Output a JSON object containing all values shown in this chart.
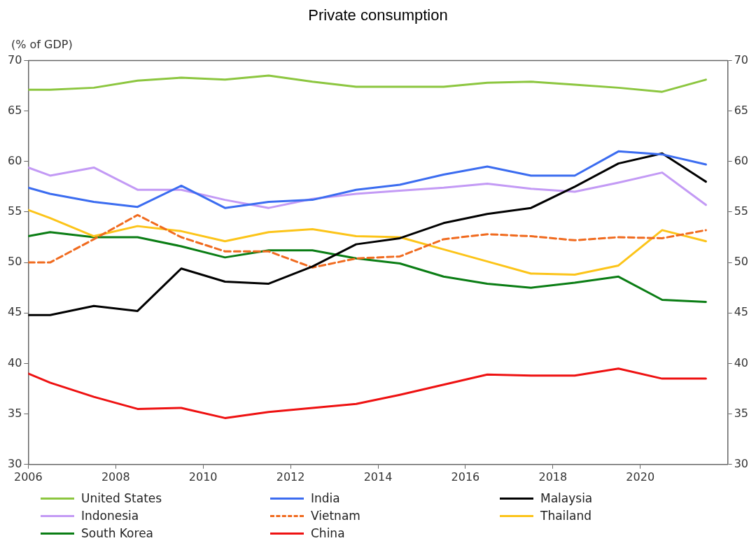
{
  "chart_data": {
    "type": "line",
    "title": "Private consumption",
    "ylabel": "(% of GDP)",
    "x": [
      2006,
      2006.5,
      2007.5,
      2008.5,
      2009.5,
      2010.5,
      2011.5,
      2012.5,
      2013.5,
      2014.5,
      2015.5,
      2016.5,
      2017.5,
      2018.5,
      2019.5,
      2020.5,
      2021.5
    ],
    "xlim": [
      2006,
      2022
    ],
    "xticks": [
      2006,
      2008,
      2010,
      2012,
      2014,
      2016,
      2018,
      2020
    ],
    "ylim": [
      30,
      70
    ],
    "yticks": [
      30,
      35,
      40,
      45,
      50,
      55,
      60,
      65,
      70
    ],
    "y2lim": [
      30,
      70
    ],
    "y2ticks": [
      30,
      35,
      40,
      45,
      50,
      55,
      60,
      65,
      70
    ],
    "grid": false,
    "legend": "bottom",
    "series": [
      {
        "name": "United States",
        "color": "#8cc63f",
        "values": [
          67.1,
          67.1,
          67.3,
          68.0,
          68.3,
          68.1,
          68.5,
          67.9,
          67.4,
          67.4,
          67.4,
          67.8,
          67.9,
          67.6,
          67.3,
          66.9,
          68.1
        ]
      },
      {
        "name": "India",
        "color": "#3b6cf0",
        "values": [
          57.4,
          56.8,
          56.0,
          55.5,
          57.6,
          55.4,
          56.0,
          56.2,
          57.2,
          57.7,
          58.7,
          59.5,
          58.6,
          58.6,
          61.0,
          60.7,
          59.7
        ]
      },
      {
        "name": "Malaysia",
        "color": "#000000",
        "values": [
          44.8,
          44.8,
          45.7,
          45.2,
          49.4,
          48.1,
          47.9,
          49.6,
          51.8,
          52.4,
          53.9,
          54.8,
          55.4,
          57.5,
          59.8,
          60.8,
          58.0
        ]
      },
      {
        "name": "Indonesia",
        "color": "#c39af5",
        "values": [
          59.4,
          58.6,
          59.4,
          57.2,
          57.2,
          56.2,
          55.4,
          56.3,
          56.8,
          57.1,
          57.4,
          57.8,
          57.3,
          57.0,
          57.9,
          58.9,
          55.7
        ]
      },
      {
        "name": "Vietnam",
        "color": "#f06a1e",
        "line_style": "dashed",
        "values": [
          50.0,
          50.0,
          52.3,
          54.7,
          52.5,
          51.1,
          51.1,
          49.5,
          50.4,
          50.6,
          52.3,
          52.8,
          52.6,
          52.2,
          52.5,
          52.4,
          53.2
        ]
      },
      {
        "name": "Thailand",
        "color": "#fcc419",
        "values": [
          55.2,
          54.4,
          52.6,
          53.6,
          53.1,
          52.1,
          53.0,
          53.3,
          52.6,
          52.5,
          51.3,
          50.1,
          48.9,
          48.8,
          49.7,
          53.2,
          52.1
        ]
      },
      {
        "name": "South Korea",
        "color": "#0a7d14",
        "values": [
          52.6,
          53.0,
          52.5,
          52.5,
          51.6,
          50.5,
          51.2,
          51.2,
          50.4,
          49.9,
          48.6,
          47.9,
          47.5,
          48.0,
          48.6,
          46.3,
          46.1
        ]
      },
      {
        "name": "China",
        "color": "#ee1111",
        "values": [
          39.0,
          38.1,
          36.7,
          35.5,
          35.6,
          34.6,
          35.2,
          35.6,
          36.0,
          36.9,
          37.9,
          38.9,
          38.8,
          38.8,
          39.5,
          38.5,
          38.5
        ]
      }
    ]
  }
}
